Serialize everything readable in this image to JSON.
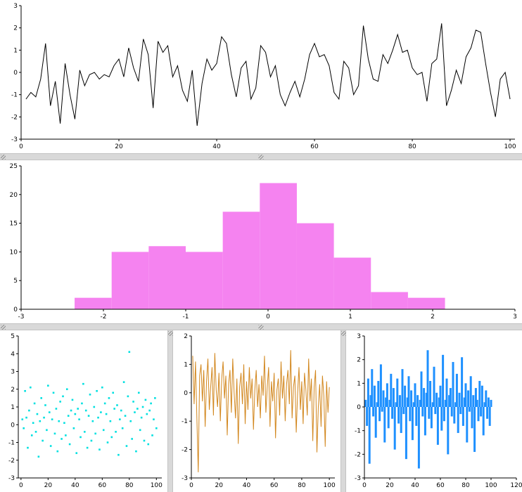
{
  "app": {
    "background": "#ffffff",
    "gutter_color": "#d9d9d9"
  },
  "chart_data": [
    {
      "type": "line",
      "title": "",
      "xlabel": "",
      "ylabel": "",
      "color": "#000000",
      "grid": false,
      "legend": "none",
      "xlim": [
        0,
        101
      ],
      "ylim": [
        -3,
        3
      ],
      "xticks": [
        0,
        20,
        40,
        60,
        80,
        100
      ],
      "yticks": [
        -3,
        -2,
        -1,
        0,
        1,
        2,
        3
      ],
      "x_range": {
        "start": 1,
        "step": 1
      },
      "y": [
        -1.2,
        -0.9,
        -1.1,
        -0.3,
        1.3,
        -1.5,
        -0.4,
        -2.3,
        0.4,
        -1.0,
        -2.1,
        0.1,
        -0.6,
        -0.1,
        0.0,
        -0.3,
        -0.1,
        -0.2,
        0.3,
        0.6,
        -0.2,
        1.1,
        0.2,
        -0.4,
        1.5,
        0.8,
        -1.6,
        1.4,
        0.9,
        1.2,
        -0.2,
        0.3,
        -0.8,
        -1.3,
        0.1,
        -2.4,
        -0.5,
        0.6,
        0.1,
        0.4,
        1.6,
        1.3,
        -0.1,
        -1.1,
        0.2,
        0.5,
        -1.2,
        -0.7,
        1.2,
        0.9,
        -0.2,
        0.3,
        -1.0,
        -1.5,
        -0.9,
        -0.4,
        -1.1,
        -0.3,
        0.8,
        1.3,
        0.7,
        0.8,
        0.3,
        -0.9,
        -1.2,
        0.5,
        0.2,
        -1.0,
        -0.6,
        2.1,
        0.6,
        -0.3,
        -0.4,
        0.8,
        0.4,
        1.0,
        1.7,
        0.9,
        1.0,
        0.2,
        -0.1,
        0.0,
        -1.3,
        0.4,
        0.6,
        2.2,
        -1.5,
        -0.8,
        0.1,
        -0.5,
        0.7,
        1.1,
        1.9,
        1.8,
        0.4,
        -0.9,
        -2.0,
        -0.3,
        0.0,
        -1.2
      ]
    },
    {
      "type": "bar",
      "title": "",
      "xlabel": "",
      "ylabel": "",
      "color": "#f583f0",
      "grid": false,
      "legend": "none",
      "xlim": [
        -3,
        3
      ],
      "ylim": [
        0,
        25
      ],
      "xticks": [
        -3,
        -2,
        -1,
        0,
        1,
        2,
        3
      ],
      "yticks": [
        0,
        5,
        10,
        15,
        20,
        25
      ],
      "bin_edges": [
        -2.35,
        -1.9,
        -1.45,
        -1.0,
        -0.55,
        -0.1,
        0.35,
        0.8,
        1.25,
        1.7,
        2.15
      ],
      "counts": [
        2,
        10,
        11,
        10,
        17,
        22,
        15,
        9,
        3,
        2
      ]
    },
    {
      "type": "scatter",
      "title": "",
      "xlabel": "",
      "ylabel": "",
      "color": "#00e0e0",
      "grid": false,
      "legend": "none",
      "xlim": [
        -2,
        104
      ],
      "ylim": [
        -3,
        5
      ],
      "xticks": [
        0,
        20,
        40,
        60,
        80,
        100
      ],
      "yticks": [
        -3,
        -2,
        -1,
        0,
        1,
        2,
        3,
        4,
        5
      ],
      "x_range": {
        "start": 1,
        "step": 1
      },
      "y": [
        0.3,
        -0.2,
        1.9,
        0.4,
        -1.3,
        0.8,
        2.1,
        -0.6,
        0.1,
        1.2,
        -0.4,
        0.6,
        -1.8,
        0.2,
        1.5,
        -0.9,
        0.4,
        1.1,
        -0.3,
        2.2,
        0.7,
        -1.2,
        0.3,
        1.8,
        -0.5,
        0.9,
        -1.5,
        0.2,
        1.3,
        -0.8,
        1.6,
        0.1,
        -0.6,
        2.0,
        0.5,
        -1.1,
        0.8,
        1.4,
        -0.2,
        0.6,
        -1.6,
        0.9,
        0.3,
        -0.7,
        1.2,
        2.3,
        -0.4,
        0.8,
        -1.3,
        0.5,
        1.7,
        -0.9,
        0.2,
        1.0,
        -0.5,
        1.9,
        0.4,
        -1.4,
        0.7,
        2.1,
        -0.3,
        1.2,
        0.6,
        -1.0,
        1.5,
        0.2,
        -0.7,
        1.8,
        0.9,
        -0.4,
        1.1,
        -1.7,
        0.3,
        0.8,
        -0.2,
        2.4,
        0.5,
        -1.2,
        1.6,
        4.1,
        0.2,
        -0.8,
        1.3,
        0.7,
        -1.5,
        0.9,
        1.8,
        -0.3,
        0.4,
        1.0,
        -0.9,
        1.4,
        0.6,
        -1.1,
        0.8,
        1.2,
        -0.6,
        0.3,
        1.5,
        -0.2
      ]
    },
    {
      "type": "line",
      "title": "",
      "xlabel": "",
      "ylabel": "",
      "color": "#d2871e",
      "grid": false,
      "legend": "none",
      "xlim": [
        0,
        104
      ],
      "ylim": [
        -3,
        2
      ],
      "xticks": [
        0,
        20,
        40,
        60,
        80,
        100
      ],
      "yticks": [
        -3,
        -2,
        -1,
        0,
        1,
        2
      ],
      "x_range": {
        "start": 1,
        "step": 1
      },
      "y": [
        1.3,
        -0.4,
        1.1,
        -0.9,
        -2.8,
        0.6,
        1.0,
        -0.3,
        0.8,
        -1.2,
        0.4,
        1.2,
        -0.6,
        0.2,
        0.9,
        -0.8,
        1.4,
        0.1,
        -0.5,
        0.7,
        -1.0,
        0.5,
        1.1,
        -0.2,
        0.6,
        -1.5,
        0.3,
        0.8,
        -0.7,
        1.2,
        0.0,
        -0.9,
        0.5,
        -1.8,
        0.2,
        0.7,
        -0.4,
        1.0,
        -1.1,
        0.4,
        -0.6,
        0.9,
        -0.2,
        0.5,
        -1.3,
        0.1,
        0.8,
        -0.5,
        0.3,
        -0.9,
        0.6,
        -0.1,
        1.3,
        -0.7,
        0.2,
        0.9,
        -1.2,
        0.4,
        -0.3,
        0.7,
        -1.6,
        0.1,
        0.5,
        -0.8,
        1.1,
        -0.2,
        0.6,
        -1.0,
        0.3,
        0.8,
        -0.4,
        1.5,
        -0.9,
        0.2,
        0.6,
        -1.4,
        0.0,
        0.9,
        -0.6,
        0.4,
        -1.1,
        0.7,
        0.1,
        -0.8,
        1.2,
        -0.3,
        0.5,
        -1.7,
        0.2,
        0.8,
        -2.1,
        -0.5,
        0.3,
        -1.2,
        0.6,
        -0.1,
        -1.9,
        0.4,
        -0.7,
        0.2
      ]
    },
    {
      "type": "stem",
      "title": "",
      "xlabel": "",
      "ylabel": "",
      "color": "#1e90ff",
      "grid": false,
      "legend": "none",
      "xlim": [
        0,
        120
      ],
      "ylim": [
        -3,
        3
      ],
      "xticks": [
        0,
        20,
        40,
        60,
        80,
        100,
        120
      ],
      "yticks": [
        -3,
        -2,
        -1,
        0,
        1,
        2,
        3
      ],
      "x_range": {
        "start": 1,
        "step": 1
      },
      "y": [
        0.3,
        -0.8,
        1.2,
        -2.4,
        0.5,
        1.6,
        -0.4,
        0.9,
        -1.3,
        0.2,
        1.1,
        -0.6,
        1.8,
        -0.2,
        0.7,
        -1.5,
        0.4,
        1.0,
        -0.9,
        0.3,
        1.4,
        -0.5,
        0.8,
        -1.8,
        0.2,
        1.2,
        -0.7,
        0.5,
        -1.1,
        1.6,
        -0.3,
        0.9,
        -2.2,
        0.4,
        1.3,
        -0.6,
        0.7,
        -1.4,
        0.2,
        1.0,
        -0.8,
        0.5,
        -2.6,
        0.3,
        1.5,
        -0.4,
        0.8,
        -1.2,
        0.6,
        2.4,
        -0.5,
        1.1,
        -0.9,
        0.2,
        1.7,
        -0.3,
        0.6,
        -1.6,
        0.4,
        0.9,
        -1.0,
        2.2,
        -0.6,
        0.3,
        1.2,
        -2.0,
        0.5,
        0.8,
        -0.4,
        1.9,
        -0.7,
        0.2,
        1.4,
        -1.1,
        0.6,
        -0.3,
        2.1,
        -0.8,
        0.4,
        1.0,
        -1.5,
        0.7,
        -0.2,
        1.3,
        -0.9,
        0.5,
        -1.9,
        0.8,
        0.3,
        -0.6,
        1.1,
        -0.4,
        0.9,
        -1.2,
        0.2,
        0.7,
        -0.5,
        0.4,
        -0.8,
        0.3
      ]
    }
  ]
}
